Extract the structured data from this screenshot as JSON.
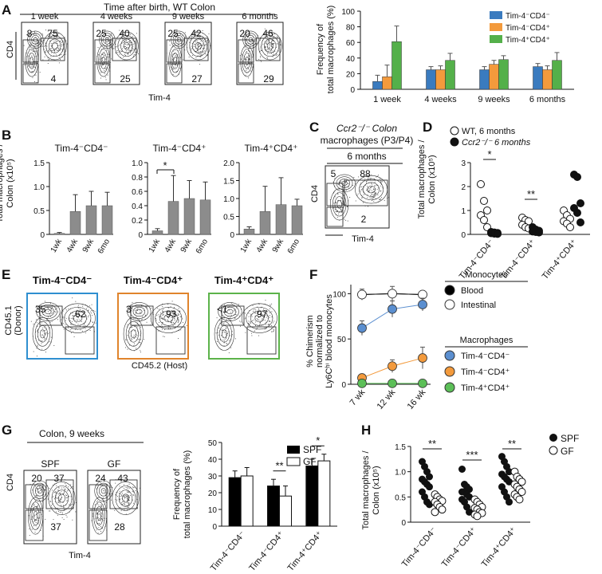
{
  "panels": {
    "A": {
      "letter": "A",
      "header": "Time after birth, WT Colon",
      "ylabel": "CD4",
      "xlabel": "Tim-4",
      "flows": [
        {
          "title": "1 week",
          "q_ul": "8",
          "q_ur": "75",
          "q_ll": "4"
        },
        {
          "title": "4 weeks",
          "q_ul": "25",
          "q_ur": "40",
          "q_ll": "25"
        },
        {
          "title": "9 weeks",
          "q_ul": "25",
          "q_ur": "42",
          "q_ll": "27"
        },
        {
          "title": "6 months",
          "q_ul": "20",
          "q_ur": "46",
          "q_ll": "29"
        }
      ],
      "chart_ylabel": "Frequency of\ntotal macrophages (%)"
    },
    "B": {
      "letter": "B",
      "ylabel": "Total macrophages /\nColon (x10⁵)"
    },
    "C": {
      "letter": "C",
      "title_l1": "Ccr2⁻/⁻ Colon",
      "title_l2": "macrophages (P3/P4)",
      "subtitle": "6 months",
      "q_ul": "5",
      "q_ur": "88",
      "q_ll": "2",
      "ylabel": "CD4",
      "xlabel": "Tim-4"
    },
    "D": {
      "letter": "D",
      "ylabel": "Total macrophages /\nColon (x10⁵)"
    },
    "E": {
      "letter": "E",
      "ylabel_l1": "CD45.1",
      "ylabel_l2": "(Donor)",
      "xlabel": "CD45.2 (Host)",
      "flows": [
        {
          "title": "Tim-4⁻CD4⁻",
          "donor": "35",
          "host": "62",
          "color": "#2f8fd0"
        },
        {
          "title": "Tim-4⁻CD4⁺",
          "donor": "3",
          "host": "93",
          "color": "#e0842c"
        },
        {
          "title": "Tim-4⁺CD4⁺",
          "donor": "<1",
          "host": "97",
          "color": "#5cb34a"
        }
      ]
    },
    "F": {
      "letter": "F",
      "ylabel_l1": "% Chimerism",
      "ylabel_l2": "normalized to",
      "ylabel_l3": "Ly6Cʰⁱ blood monocytes",
      "legend_mono_title": "Monocytes",
      "legend_mac_title": "Macrophages"
    },
    "G": {
      "letter": "G",
      "header": "Colon, 9 weeks",
      "ylabel": "CD4",
      "xlabel": "Tim-4",
      "flows": [
        {
          "title": "SPF",
          "q_ul": "20",
          "q_ur": "37",
          "q_ll": "37"
        },
        {
          "title": "GF",
          "q_ul": "24",
          "q_ur": "43",
          "q_ll": "28"
        }
      ],
      "chart_ylabel": "Frequency of\ntotal macrophages (%)"
    },
    "H": {
      "letter": "H",
      "ylabel": "Total macrophages /\nColon (x10⁵)"
    }
  },
  "chart_data": [
    {
      "id": "A_bar",
      "type": "bar",
      "categories": [
        "1 week",
        "4 weeks",
        "9 weeks",
        "6 months"
      ],
      "series": [
        {
          "name": "Tim-4⁻CD4⁻",
          "color": "#3a7bbf",
          "values": [
            10,
            25,
            25,
            29
          ],
          "err": [
            8,
            4,
            4,
            4
          ]
        },
        {
          "name": "Tim-4⁻CD4⁺",
          "color": "#f39a3c",
          "values": [
            16,
            25,
            32,
            25
          ],
          "err": [
            15,
            5,
            5,
            5
          ]
        },
        {
          "name": "Tim-4⁺CD4⁺",
          "color": "#54b04a",
          "values": [
            61,
            37,
            38,
            37
          ],
          "err": [
            20,
            9,
            5,
            10
          ]
        }
      ],
      "ylim": [
        0,
        100
      ],
      "yticks": [
        0,
        20,
        40,
        60,
        80,
        100
      ]
    },
    {
      "id": "B_bar",
      "type": "bar",
      "subplots": [
        {
          "title": "Tim-4⁻CD4⁻",
          "categories": [
            "1wk",
            "4wk",
            "9wk",
            "6mo"
          ],
          "values": [
            0.02,
            0.48,
            0.6,
            0.6
          ],
          "err": [
            0.02,
            0.35,
            0.3,
            0.28
          ],
          "ylim": [
            0,
            1.5
          ],
          "yticks": [
            "0",
            "0.5",
            "1.0",
            "1.5"
          ],
          "sig": null
        },
        {
          "title": "Tim-4⁻CD4⁺",
          "categories": [
            "1wk",
            "4wk",
            "9wk",
            "6mo"
          ],
          "values": [
            0.05,
            0.46,
            0.5,
            0.48
          ],
          "err": [
            0.03,
            0.36,
            0.25,
            0.25
          ],
          "ylim": [
            0,
            1.0
          ],
          "yticks": [
            "0",
            "0.2",
            "0.4",
            "0.6",
            "0.8",
            "1.0"
          ],
          "sig": "*"
        },
        {
          "title": "Tim-4⁺CD4⁺",
          "categories": [
            "1wk",
            "4wk",
            "9wk",
            "6mo"
          ],
          "values": [
            0.15,
            0.64,
            0.83,
            0.8
          ],
          "err": [
            0.06,
            0.7,
            0.75,
            0.18
          ],
          "ylim": [
            0,
            2.0
          ],
          "yticks": [
            "0",
            "0.5",
            "1.0",
            "1.5",
            "2.0"
          ],
          "sig": null
        }
      ]
    },
    {
      "id": "D_scatter",
      "type": "scatter",
      "categories": [
        "Tim-4⁻CD4⁻",
        "Tim-4⁻CD4⁺",
        "Tim-4⁺CD4⁺"
      ],
      "legend": [
        "WT, 6 months",
        "Ccr2⁻/⁻ 6 months"
      ],
      "WT": [
        [
          2.1,
          1.4,
          1.0,
          0.8,
          0.6,
          0.3
        ],
        [
          0.7,
          0.6,
          0.55,
          0.4,
          0.3,
          0.25
        ],
        [
          1.0,
          0.8,
          0.65,
          0.55,
          0.45,
          0.3
        ]
      ],
      "KO": [
        [
          0.1,
          0.08,
          0.06,
          0.05,
          0.03,
          0.02
        ],
        [
          0.3,
          0.2,
          0.15,
          0.12,
          0.1,
          0.08
        ],
        [
          2.5,
          2.4,
          1.3,
          1.1,
          0.9,
          0.5
        ]
      ],
      "sig": [
        "*",
        "**",
        ""
      ],
      "ylim": [
        0,
        3
      ],
      "yticks": [
        "0",
        "1",
        "2",
        "3"
      ]
    },
    {
      "id": "F_line",
      "type": "line",
      "x": [
        "7 wk",
        "12 wk",
        "16 wk"
      ],
      "series": [
        {
          "name": "Blood",
          "color": "#000000",
          "values": [
            99,
            100,
            99
          ],
          "err": [
            6,
            8,
            4
          ]
        },
        {
          "name": "Intestinal",
          "color": "#ffffff",
          "values": [
            99,
            100,
            99
          ],
          "err": [
            0,
            0,
            0
          ]
        },
        {
          "name": "Tim-4⁻CD4⁻",
          "color": "#5b8fd0",
          "values": [
            62,
            83,
            88
          ],
          "err": [
            8,
            9,
            7
          ]
        },
        {
          "name": "Tim-4⁻CD4⁺",
          "color": "#f39a3c",
          "values": [
            7,
            20,
            29
          ],
          "err": [
            3,
            7,
            12
          ]
        },
        {
          "name": "Tim-4⁺CD4⁺",
          "color": "#5cbf58",
          "values": [
            1,
            1,
            1
          ],
          "err": [
            0,
            0,
            0
          ]
        }
      ],
      "ylim": [
        0,
        110
      ],
      "yticks": [
        "0",
        "50",
        "100"
      ]
    },
    {
      "id": "G_bar",
      "type": "bar",
      "categories": [
        "Tim-4⁻CD4⁻",
        "Tim-4⁻CD4⁺",
        "Tim-4⁺CD4⁺"
      ],
      "series": [
        {
          "name": "SPF",
          "color": "#000000",
          "values": [
            29,
            24,
            36
          ],
          "err": [
            4,
            4,
            4
          ]
        },
        {
          "name": "GF",
          "color": "#ffffff",
          "values": [
            30,
            18,
            39
          ],
          "err": [
            5,
            6,
            4
          ]
        }
      ],
      "sig": [
        "",
        "**",
        "*"
      ],
      "ylim": [
        0,
        50
      ],
      "yticks": [
        "0",
        "10",
        "20",
        "30",
        "40",
        "50"
      ]
    },
    {
      "id": "H_scatter",
      "type": "scatter",
      "categories": [
        "Tim-4⁻CD4⁻",
        "Tim-4⁻CD4⁺",
        "Tim-4⁺CD4⁺"
      ],
      "legend": [
        "SPF",
        "GF"
      ],
      "SPF": [
        [
          1.2,
          1.1,
          1.0,
          0.9,
          0.85,
          0.8,
          0.75,
          0.7,
          0.6,
          0.5,
          0.4,
          0.35
        ],
        [
          1.05,
          0.75,
          0.7,
          0.65,
          0.6,
          0.6,
          0.55,
          0.5,
          0.45,
          0.4,
          0.3,
          0.2
        ],
        [
          1.3,
          1.2,
          1.1,
          1.0,
          0.95,
          0.9,
          0.85,
          0.8,
          0.7,
          0.6,
          0.5,
          0.4
        ]
      ],
      "GF": [
        [
          0.55,
          0.5,
          0.45,
          0.42,
          0.4,
          0.35,
          0.3,
          0.25,
          0.2
        ],
        [
          0.45,
          0.4,
          0.35,
          0.3,
          0.28,
          0.25,
          0.2,
          0.18,
          0.15,
          0.12
        ],
        [
          1.0,
          0.9,
          0.85,
          0.8,
          0.75,
          0.7,
          0.65,
          0.6,
          0.55,
          0.5,
          0.45
        ]
      ],
      "sig": [
        "**",
        "***",
        "**"
      ],
      "ylim": [
        0,
        1.5
      ],
      "yticks": [
        "0",
        "0.5",
        "1.0",
        "1.5"
      ]
    }
  ]
}
